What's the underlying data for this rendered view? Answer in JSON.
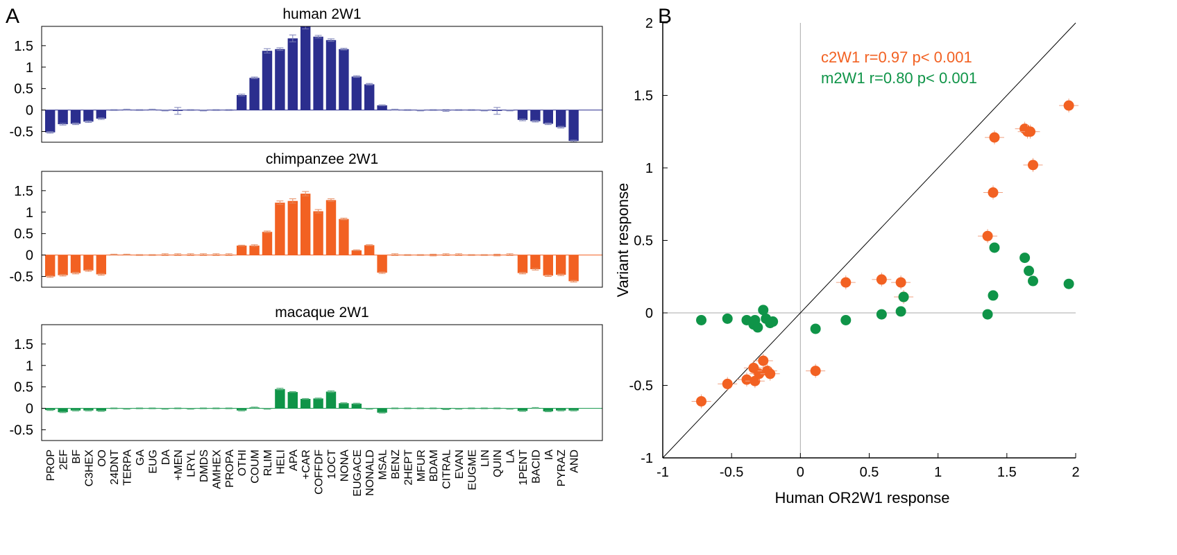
{
  "panel_labels": {
    "a": "A",
    "b": "B"
  },
  "colors": {
    "human": "#2b2e8e",
    "chimp": "#f26122",
    "macaque": "#0f9448",
    "axis": "#000000",
    "zero": "#aaaaaa"
  },
  "chart_data": [
    {
      "type": "bar",
      "title": "human 2W1",
      "categories": [
        "PROP",
        "2EF",
        "BF",
        "C3HEX",
        "OO",
        "24DNT",
        "TERPA",
        "GA",
        "EUG",
        "DA",
        "+MEN",
        "LRYL",
        "DMDS",
        "AMHEX",
        "PROPA",
        "OTHI",
        "COUM",
        "RLIM",
        "HELI",
        "APA",
        "+CAR",
        "COFFDF",
        "1OCT",
        "NONA",
        "EUGACE",
        "NONALD",
        "MSAL",
        "BENZ",
        "2HEPT",
        "MFUR",
        "BDAM",
        "CITRAL",
        "EVAN",
        "EUGME",
        "LIN",
        "QUIN",
        "LA",
        "1PENT",
        "BACID",
        "IA",
        "PYRAZ",
        "AND"
      ],
      "values": [
        -0.52,
        -0.33,
        -0.32,
        -0.27,
        -0.2,
        0.0,
        0.01,
        0.0,
        0.01,
        -0.01,
        -0.02,
        0.0,
        -0.01,
        0.0,
        0.0,
        0.35,
        0.75,
        1.38,
        1.42,
        1.67,
        1.95,
        1.71,
        1.63,
        1.42,
        0.78,
        0.6,
        0.11,
        0.01,
        0.0,
        -0.01,
        0.0,
        -0.01,
        0.0,
        0.0,
        -0.01,
        -0.02,
        -0.01,
        -0.23,
        -0.26,
        -0.32,
        -0.4,
        -0.72
      ],
      "errors": [
        0.02,
        0.02,
        0.02,
        0.02,
        0.02,
        0.0,
        0.0,
        0.0,
        0.0,
        0.0,
        0.08,
        0.0,
        0.0,
        0.0,
        0.0,
        0.02,
        0.02,
        0.05,
        0.03,
        0.08,
        0.06,
        0.03,
        0.03,
        0.02,
        0.02,
        0.02,
        0.01,
        0.0,
        0.0,
        0.0,
        0.0,
        0.02,
        0.0,
        0.0,
        0.0,
        0.08,
        0.0,
        0.02,
        0.02,
        0.02,
        0.02,
        0.02
      ],
      "yticks": [
        "1.5",
        "1",
        "0.5",
        "0",
        "-0.5"
      ],
      "ylim": [
        -0.75,
        1.95
      ]
    },
    {
      "type": "bar",
      "title": "chimpanzee 2W1",
      "categories": [
        "PROP",
        "2EF",
        "BF",
        "C3HEX",
        "OO",
        "24DNT",
        "TERPA",
        "GA",
        "EUG",
        "DA",
        "+MEN",
        "LRYL",
        "DMDS",
        "AMHEX",
        "PROPA",
        "OTHI",
        "COUM",
        "RLIM",
        "HELI",
        "APA",
        "+CAR",
        "COFFDF",
        "1OCT",
        "NONA",
        "EUGACE",
        "NONALD",
        "MSAL",
        "BENZ",
        "2HEPT",
        "MFUR",
        "BDAM",
        "CITRAL",
        "EVAN",
        "EUGME",
        "LIN",
        "QUIN",
        "LA",
        "1PENT",
        "BACID",
        "IA",
        "PYRAZ",
        "AND"
      ],
      "values": [
        -0.5,
        -0.47,
        -0.42,
        -0.36,
        -0.45,
        0.01,
        0.01,
        0.0,
        0.0,
        0.01,
        0.01,
        0.01,
        0.01,
        0.01,
        0.01,
        0.22,
        0.22,
        0.54,
        1.22,
        1.26,
        1.43,
        1.02,
        1.28,
        0.84,
        0.11,
        0.23,
        -0.41,
        0.01,
        0.0,
        0.0,
        0.0,
        0.01,
        0.01,
        0.0,
        0.0,
        0.0,
        0.01,
        -0.42,
        -0.33,
        -0.48,
        -0.46,
        -0.61
      ],
      "errors": [
        0.02,
        0.02,
        0.02,
        0.02,
        0.02,
        0.01,
        0.01,
        0.0,
        0.0,
        0.02,
        0.02,
        0.02,
        0.02,
        0.02,
        0.02,
        0.01,
        0.02,
        0.02,
        0.04,
        0.05,
        0.05,
        0.04,
        0.03,
        0.02,
        0.01,
        0.01,
        0.02,
        0.02,
        0.0,
        0.0,
        0.02,
        0.02,
        0.02,
        0.0,
        0.0,
        0.02,
        0.02,
        0.02,
        0.02,
        0.02,
        0.02,
        0.02
      ],
      "yticks": [
        "1.5",
        "1",
        "0.5",
        "0",
        "-0.5"
      ],
      "ylim": [
        -0.75,
        1.95
      ]
    },
    {
      "type": "bar",
      "title": "macaque 2W1",
      "categories": [
        "PROP",
        "2EF",
        "BF",
        "C3HEX",
        "OO",
        "24DNT",
        "TERPA",
        "GA",
        "EUG",
        "DA",
        "+MEN",
        "LRYL",
        "DMDS",
        "AMHEX",
        "PROPA",
        "OTHI",
        "COUM",
        "RLIM",
        "HELI",
        "APA",
        "+CAR",
        "COFFDF",
        "1OCT",
        "NONA",
        "EUGACE",
        "NONALD",
        "MSAL",
        "BENZ",
        "2HEPT",
        "MFUR",
        "BDAM",
        "CITRAL",
        "EVAN",
        "EUGME",
        "LIN",
        "QUIN",
        "LA",
        "1PENT",
        "BACID",
        "IA",
        "PYRAZ",
        "AND"
      ],
      "values": [
        -0.04,
        -0.09,
        -0.05,
        -0.05,
        -0.06,
        0.0,
        -0.01,
        0.0,
        0.0,
        -0.01,
        0.0,
        -0.01,
        0.0,
        0.0,
        0.0,
        -0.05,
        0.02,
        -0.01,
        0.45,
        0.38,
        0.22,
        0.23,
        0.39,
        0.12,
        0.11,
        -0.01,
        -0.1,
        0.0,
        0.0,
        0.0,
        0.0,
        -0.02,
        -0.01,
        0.0,
        0.0,
        0.0,
        -0.01,
        -0.06,
        0.01,
        -0.07,
        -0.05,
        -0.05
      ],
      "errors": [
        0.01,
        0.01,
        0.01,
        0.01,
        0.01,
        0.0,
        0.0,
        0.0,
        0.0,
        0.0,
        0.0,
        0.0,
        0.0,
        0.0,
        0.0,
        0.01,
        0.01,
        0.01,
        0.02,
        0.01,
        0.01,
        0.01,
        0.02,
        0.01,
        0.01,
        0.0,
        0.01,
        0.0,
        0.0,
        0.0,
        0.0,
        0.0,
        0.0,
        0.0,
        0.0,
        0.0,
        0.0,
        0.01,
        0.01,
        0.01,
        0.01,
        0.01
      ],
      "yticks": [
        "1.5",
        "1",
        "0.5",
        "0",
        "-0.5"
      ],
      "ylim": [
        -0.75,
        1.95
      ]
    },
    {
      "type": "scatter",
      "xlabel": "Human OR2W1 response",
      "ylabel": "Variant response",
      "xlim": [
        -1,
        2
      ],
      "ylim": [
        -1,
        2
      ],
      "xticks": [
        "-1",
        "-0.5",
        "0",
        "0.5",
        "1",
        "1.5",
        "2"
      ],
      "yticks": [
        "2",
        "1.5",
        "1",
        "0.5",
        "0",
        "-0.5",
        "-1"
      ],
      "series": [
        {
          "name": "c2W1 r=0.97 p< 0.001",
          "x": [
            -0.72,
            -0.53,
            -0.39,
            -0.34,
            -0.33,
            -0.3,
            -0.27,
            -0.24,
            -0.22,
            0.11,
            0.33,
            0.59,
            0.73,
            0.75,
            1.36,
            1.4,
            1.41,
            1.63,
            1.65,
            1.67,
            1.69,
            1.95
          ],
          "y": [
            -0.61,
            -0.49,
            -0.46,
            -0.38,
            -0.47,
            -0.42,
            -0.33,
            -0.4,
            -0.42,
            -0.4,
            0.21,
            0.23,
            0.21,
            0.11,
            0.53,
            0.83,
            1.21,
            1.27,
            1.25,
            1.25,
            1.02,
            1.43
          ]
        },
        {
          "name": "m2W1 r=0.80 p< 0.001",
          "x": [
            -0.72,
            -0.53,
            -0.39,
            -0.34,
            -0.33,
            -0.31,
            -0.27,
            -0.25,
            -0.22,
            -0.2,
            0.11,
            0.33,
            0.59,
            0.73,
            0.75,
            1.36,
            1.4,
            1.41,
            1.63,
            1.66,
            1.69,
            1.95
          ],
          "y": [
            -0.05,
            -0.04,
            -0.05,
            -0.08,
            -0.05,
            -0.1,
            0.02,
            -0.04,
            -0.07,
            -0.06,
            -0.11,
            -0.05,
            -0.01,
            0.01,
            0.11,
            -0.01,
            0.12,
            0.45,
            0.38,
            0.29,
            0.22,
            0.2
          ]
        }
      ]
    }
  ]
}
